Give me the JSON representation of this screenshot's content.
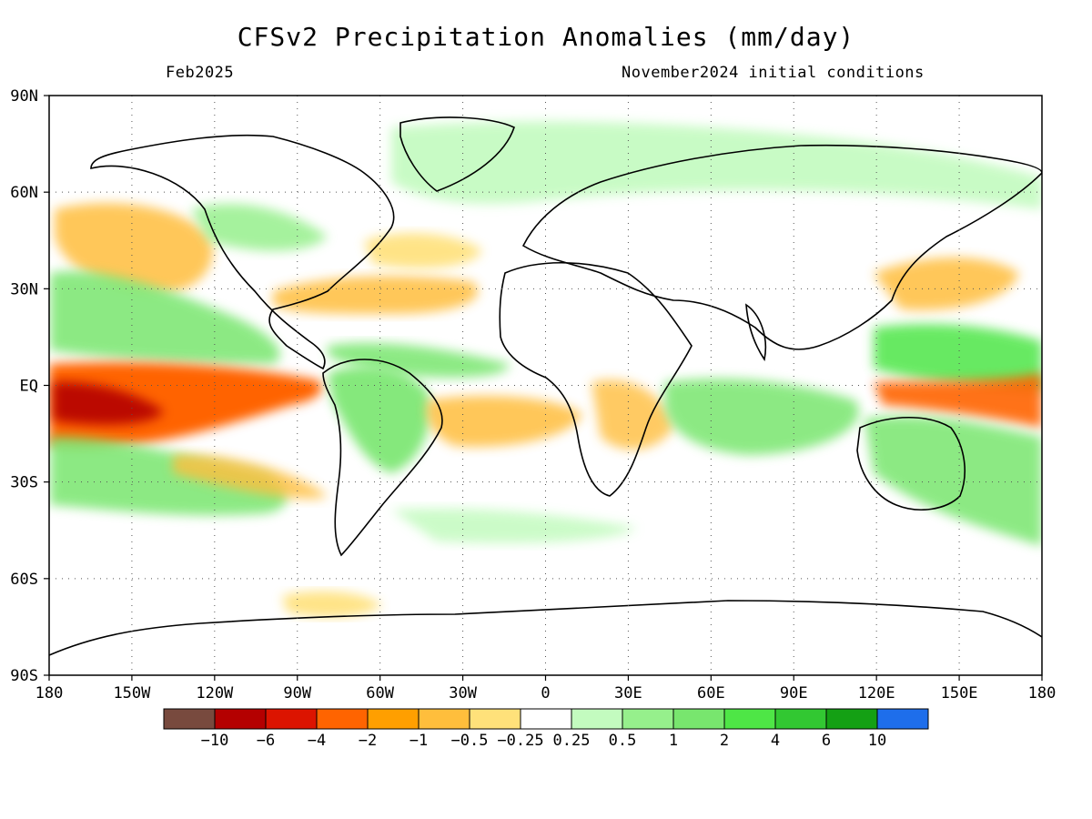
{
  "title": "CFSv2 Precipitation Anomalies (mm/day)",
  "valid_month": "Feb2025",
  "initial_conditions": "November2024 initial conditions",
  "map": {
    "lon_range": [
      -180,
      180
    ],
    "lat_range": [
      -90,
      90
    ],
    "lon_ticks": [
      "180",
      "150W",
      "120W",
      "90W",
      "60W",
      "30W",
      "0",
      "30E",
      "60E",
      "90E",
      "120E",
      "150E",
      "180"
    ],
    "lat_ticks": [
      "90N",
      "60N",
      "30N",
      "EQ",
      "30S",
      "60S",
      "90S"
    ],
    "grid": "dotted"
  },
  "colorbar": {
    "colors": [
      "#784a3e",
      "#b40000",
      "#dc1400",
      "#ff6400",
      "#ff9f00",
      "#ffbe3c",
      "#ffe17a",
      "#ffffff",
      "#c3fbbf",
      "#96f08c",
      "#78e66e",
      "#4ee646",
      "#32c832",
      "#14a014",
      "#1e6eeb"
    ],
    "labels": [
      "−10",
      "−6",
      "−4",
      "−2",
      "−1",
      "−0.5",
      "−0.25",
      "0.25",
      "0.5",
      "1",
      "2",
      "4",
      "6",
      "10"
    ]
  },
  "anomaly_regions": [
    {
      "region": "Central/East Equatorial Pacific",
      "anomaly": "dry",
      "peak": "< -6"
    },
    {
      "region": "Western Pacific / Maritime Continent east",
      "anomaly": "dry",
      "peak": "-4"
    },
    {
      "region": "North Pacific subtropics",
      "anomaly": "wet",
      "peak": "2"
    },
    {
      "region": "South Pacific",
      "anomaly": "wet",
      "peak": "2"
    },
    {
      "region": "Gulf of Mexico / Southern US",
      "anomaly": "dry",
      "peak": "-1"
    },
    {
      "region": "Amazon / South America",
      "anomaly": "wet",
      "peak": "2"
    },
    {
      "region": "Tropical Atlantic south",
      "anomaly": "dry",
      "peak": "-1"
    },
    {
      "region": "Indian Ocean / Australia",
      "anomaly": "wet",
      "peak": "2"
    }
  ]
}
